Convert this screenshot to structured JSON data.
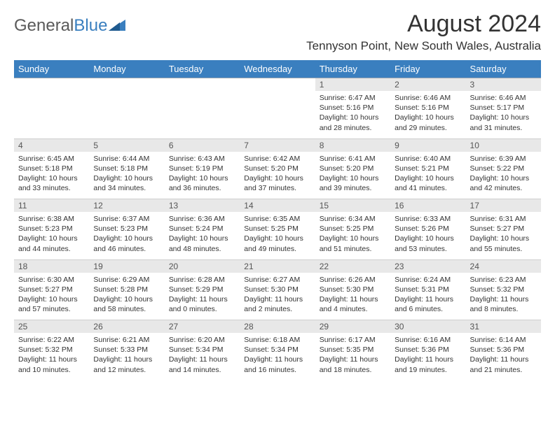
{
  "logo": {
    "text1": "General",
    "text2": "Blue"
  },
  "title": "August 2024",
  "location": "Tennyson Point, New South Wales, Australia",
  "colors": {
    "header_bg": "#3a7fbf",
    "header_text": "#ffffff",
    "daynum_bg": "#e8e8e8",
    "border": "#cfcfcf",
    "text": "#333333"
  },
  "day_headers": [
    "Sunday",
    "Monday",
    "Tuesday",
    "Wednesday",
    "Thursday",
    "Friday",
    "Saturday"
  ],
  "weeks": [
    [
      null,
      null,
      null,
      null,
      {
        "n": "1",
        "sr": "6:47 AM",
        "ss": "5:16 PM",
        "dl": "10 hours and 28 minutes."
      },
      {
        "n": "2",
        "sr": "6:46 AM",
        "ss": "5:16 PM",
        "dl": "10 hours and 29 minutes."
      },
      {
        "n": "3",
        "sr": "6:46 AM",
        "ss": "5:17 PM",
        "dl": "10 hours and 31 minutes."
      }
    ],
    [
      {
        "n": "4",
        "sr": "6:45 AM",
        "ss": "5:18 PM",
        "dl": "10 hours and 33 minutes."
      },
      {
        "n": "5",
        "sr": "6:44 AM",
        "ss": "5:18 PM",
        "dl": "10 hours and 34 minutes."
      },
      {
        "n": "6",
        "sr": "6:43 AM",
        "ss": "5:19 PM",
        "dl": "10 hours and 36 minutes."
      },
      {
        "n": "7",
        "sr": "6:42 AM",
        "ss": "5:20 PM",
        "dl": "10 hours and 37 minutes."
      },
      {
        "n": "8",
        "sr": "6:41 AM",
        "ss": "5:20 PM",
        "dl": "10 hours and 39 minutes."
      },
      {
        "n": "9",
        "sr": "6:40 AM",
        "ss": "5:21 PM",
        "dl": "10 hours and 41 minutes."
      },
      {
        "n": "10",
        "sr": "6:39 AM",
        "ss": "5:22 PM",
        "dl": "10 hours and 42 minutes."
      }
    ],
    [
      {
        "n": "11",
        "sr": "6:38 AM",
        "ss": "5:23 PM",
        "dl": "10 hours and 44 minutes."
      },
      {
        "n": "12",
        "sr": "6:37 AM",
        "ss": "5:23 PM",
        "dl": "10 hours and 46 minutes."
      },
      {
        "n": "13",
        "sr": "6:36 AM",
        "ss": "5:24 PM",
        "dl": "10 hours and 48 minutes."
      },
      {
        "n": "14",
        "sr": "6:35 AM",
        "ss": "5:25 PM",
        "dl": "10 hours and 49 minutes."
      },
      {
        "n": "15",
        "sr": "6:34 AM",
        "ss": "5:25 PM",
        "dl": "10 hours and 51 minutes."
      },
      {
        "n": "16",
        "sr": "6:33 AM",
        "ss": "5:26 PM",
        "dl": "10 hours and 53 minutes."
      },
      {
        "n": "17",
        "sr": "6:31 AM",
        "ss": "5:27 PM",
        "dl": "10 hours and 55 minutes."
      }
    ],
    [
      {
        "n": "18",
        "sr": "6:30 AM",
        "ss": "5:27 PM",
        "dl": "10 hours and 57 minutes."
      },
      {
        "n": "19",
        "sr": "6:29 AM",
        "ss": "5:28 PM",
        "dl": "10 hours and 58 minutes."
      },
      {
        "n": "20",
        "sr": "6:28 AM",
        "ss": "5:29 PM",
        "dl": "11 hours and 0 minutes."
      },
      {
        "n": "21",
        "sr": "6:27 AM",
        "ss": "5:30 PM",
        "dl": "11 hours and 2 minutes."
      },
      {
        "n": "22",
        "sr": "6:26 AM",
        "ss": "5:30 PM",
        "dl": "11 hours and 4 minutes."
      },
      {
        "n": "23",
        "sr": "6:24 AM",
        "ss": "5:31 PM",
        "dl": "11 hours and 6 minutes."
      },
      {
        "n": "24",
        "sr": "6:23 AM",
        "ss": "5:32 PM",
        "dl": "11 hours and 8 minutes."
      }
    ],
    [
      {
        "n": "25",
        "sr": "6:22 AM",
        "ss": "5:32 PM",
        "dl": "11 hours and 10 minutes."
      },
      {
        "n": "26",
        "sr": "6:21 AM",
        "ss": "5:33 PM",
        "dl": "11 hours and 12 minutes."
      },
      {
        "n": "27",
        "sr": "6:20 AM",
        "ss": "5:34 PM",
        "dl": "11 hours and 14 minutes."
      },
      {
        "n": "28",
        "sr": "6:18 AM",
        "ss": "5:34 PM",
        "dl": "11 hours and 16 minutes."
      },
      {
        "n": "29",
        "sr": "6:17 AM",
        "ss": "5:35 PM",
        "dl": "11 hours and 18 minutes."
      },
      {
        "n": "30",
        "sr": "6:16 AM",
        "ss": "5:36 PM",
        "dl": "11 hours and 19 minutes."
      },
      {
        "n": "31",
        "sr": "6:14 AM",
        "ss": "5:36 PM",
        "dl": "11 hours and 21 minutes."
      }
    ]
  ],
  "labels": {
    "sunrise": "Sunrise:",
    "sunset": "Sunset:",
    "daylight": "Daylight:"
  }
}
